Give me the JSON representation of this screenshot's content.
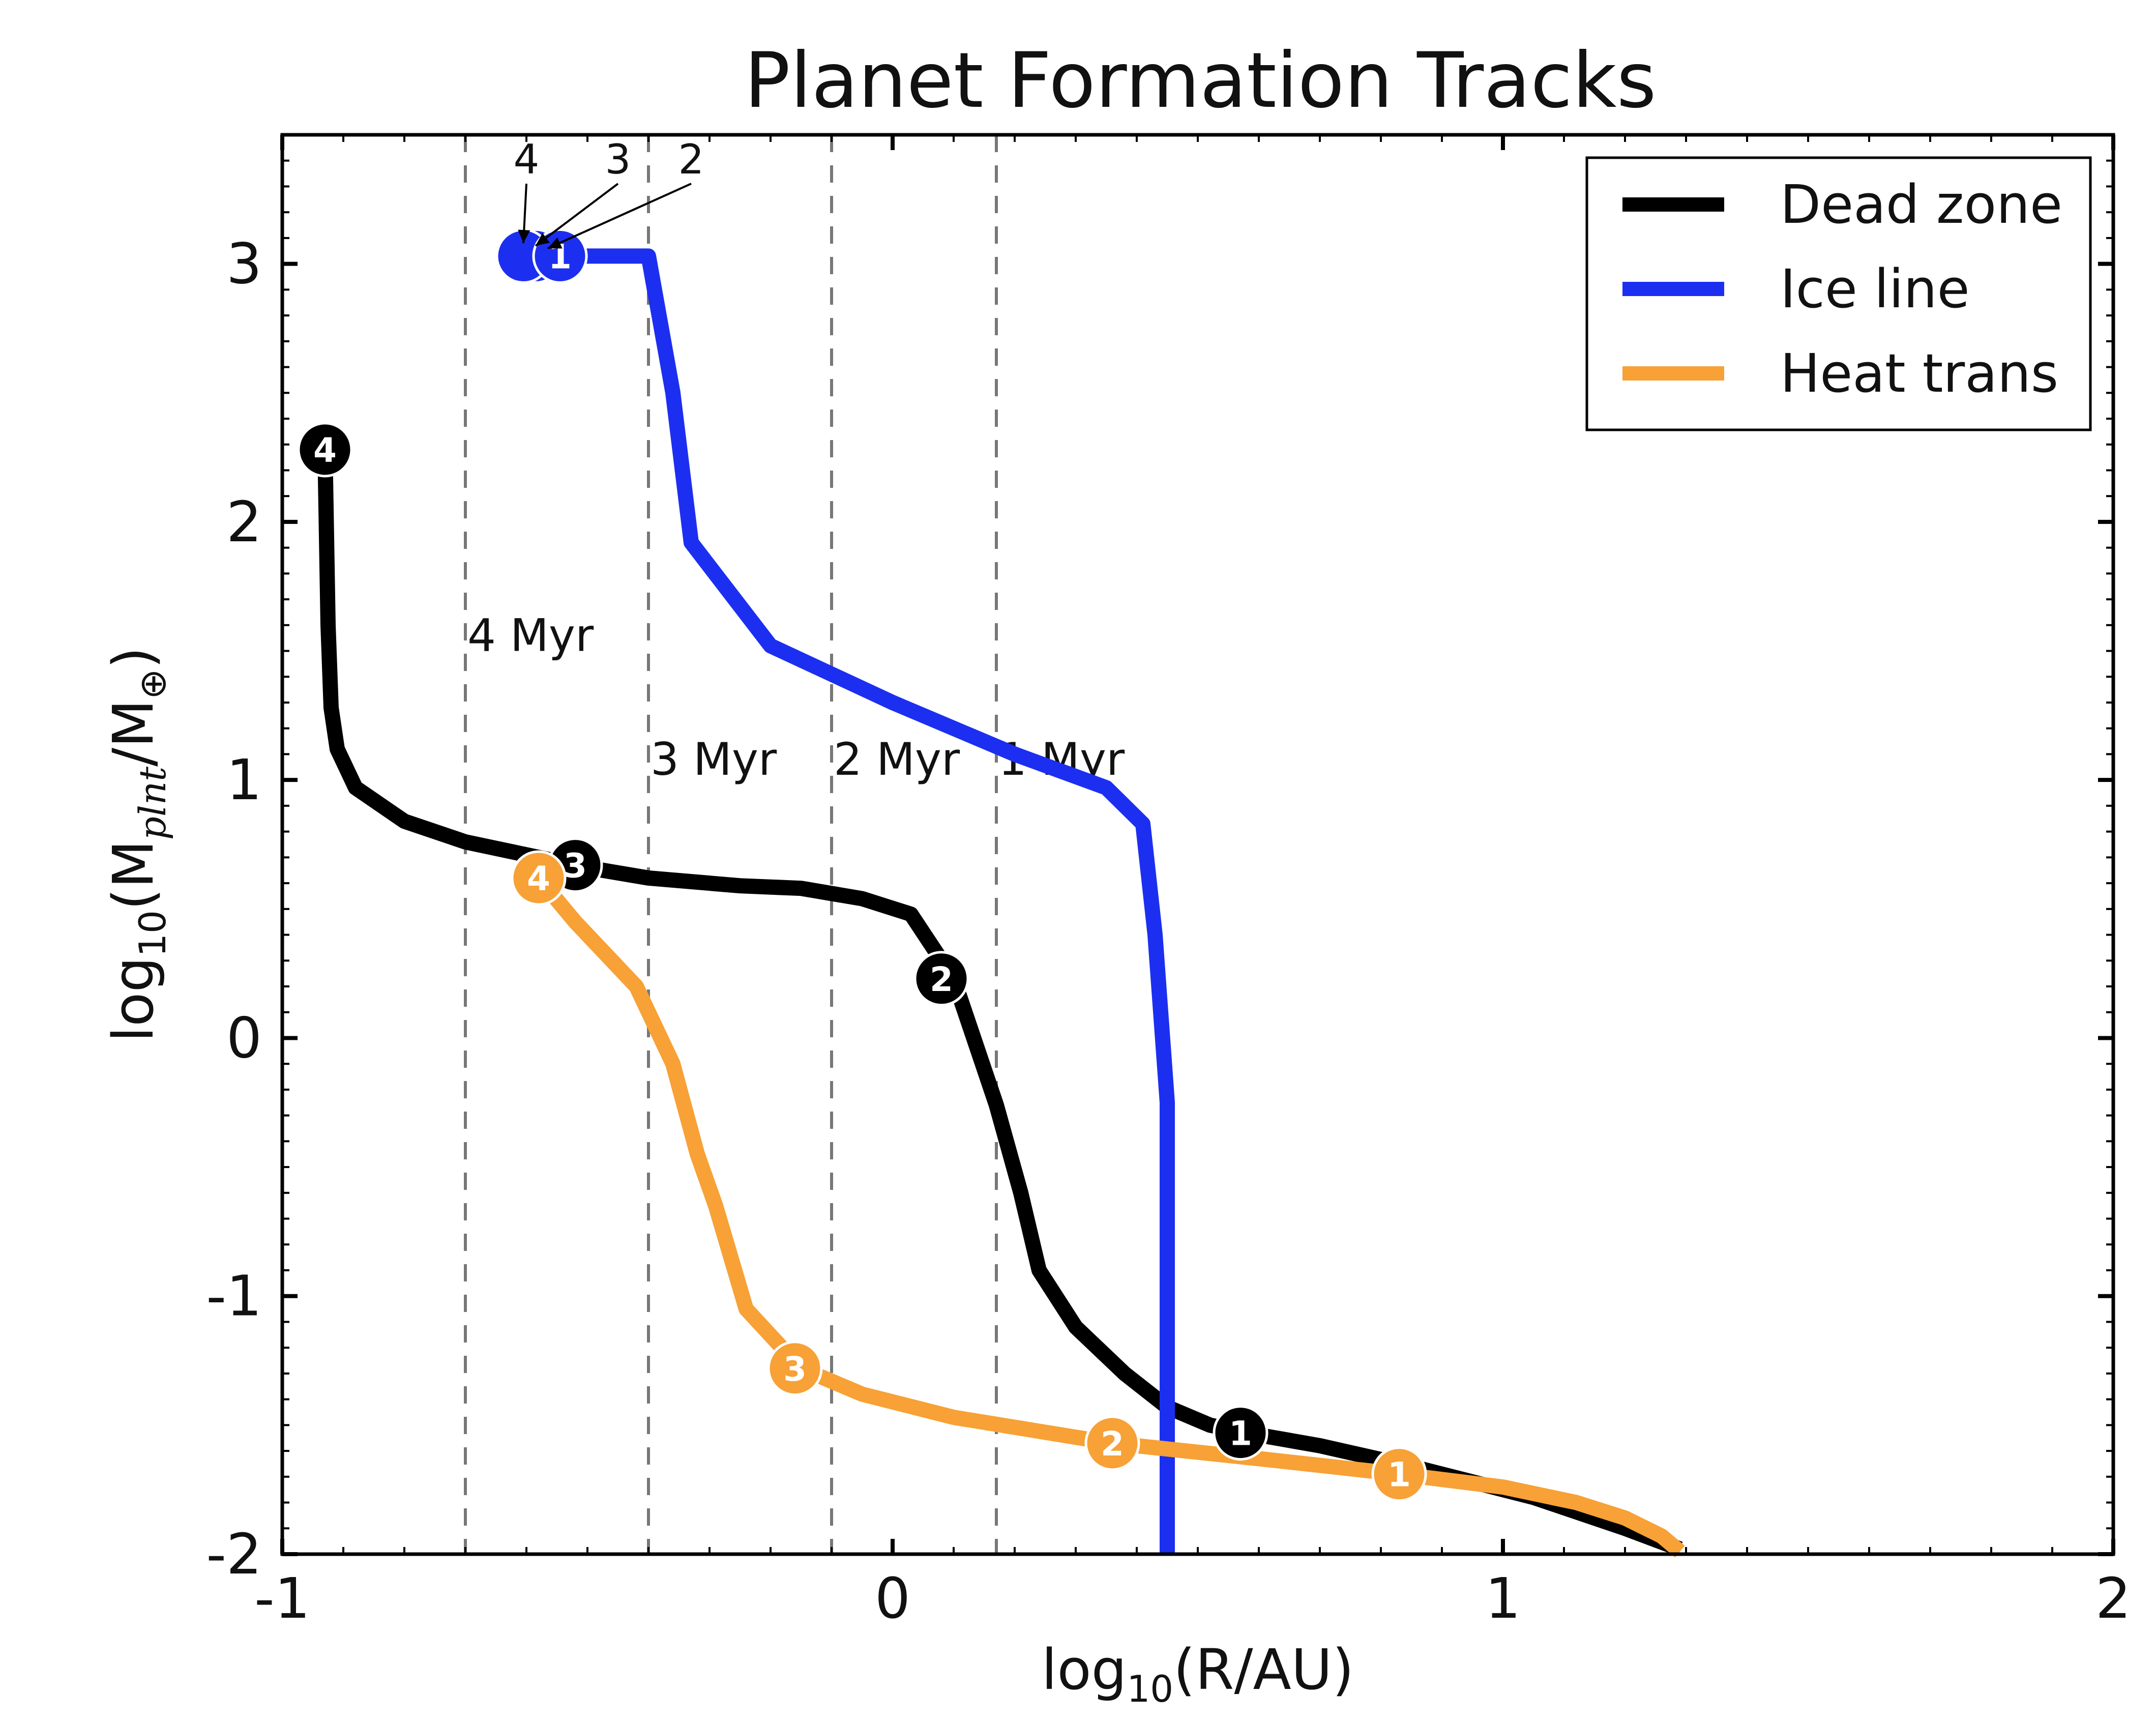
{
  "chart_data": {
    "type": "line",
    "title": "Planet Formation Tracks",
    "xlabel": "log10(R/AU)",
    "ylabel": "log10(Mplnt/M⊕)",
    "xlabel_parts": {
      "pre": "log",
      "sub": "10",
      "post": "(R/AU)"
    },
    "ylabel_parts": {
      "pre": "log",
      "sub1": "10",
      "mid": "(M",
      "sub2": "plnt",
      "post": "/M",
      "sub3": "⊕",
      "close": ")"
    },
    "xlim": [
      -1,
      2
    ],
    "ylim": [
      -2,
      3.5
    ],
    "xticks": [
      -1,
      0,
      1,
      2
    ],
    "xtick_labels": [
      "-1",
      "0",
      "1",
      "2"
    ],
    "yticks": [
      -2,
      -1,
      0,
      1,
      2,
      3
    ],
    "ytick_labels": [
      "-2",
      "-1",
      "0",
      "1",
      "2",
      "3"
    ],
    "grid": false,
    "legend_position": "top-right",
    "vlines": [
      {
        "x": -0.7,
        "label": "4 Myr",
        "label_y": 1.5
      },
      {
        "x": -0.4,
        "label": "3 Myr",
        "label_y": 1.02
      },
      {
        "x": -0.1,
        "label": "2 Myr",
        "label_y": 1.02
      },
      {
        "x": 0.17,
        "label": "1 Myr",
        "label_y": 1.02
      }
    ],
    "series": [
      {
        "name": "Dead zone",
        "color": "#000000",
        "x": [
          -0.93,
          -0.925,
          -0.92,
          -0.91,
          -0.88,
          -0.8,
          -0.7,
          -0.6,
          -0.5,
          -0.4,
          -0.25,
          -0.15,
          -0.05,
          0.03,
          0.1,
          0.17,
          0.21,
          0.24,
          0.3,
          0.38,
          0.45,
          0.52,
          0.58,
          0.7,
          0.85,
          1.05,
          1.2,
          1.29
        ],
        "y": [
          2.28,
          1.6,
          1.28,
          1.12,
          0.97,
          0.84,
          0.76,
          0.71,
          0.66,
          0.62,
          0.59,
          0.58,
          0.54,
          0.48,
          0.23,
          -0.26,
          -0.6,
          -0.9,
          -1.12,
          -1.3,
          -1.43,
          -1.5,
          -1.53,
          -1.58,
          -1.66,
          -1.78,
          -1.9,
          -1.98
        ]
      },
      {
        "name": "Ice line",
        "color": "#1c2ff0",
        "x": [
          -0.6,
          -0.55,
          -0.4,
          -0.36,
          -0.33,
          -0.2,
          0.0,
          0.2,
          0.35,
          0.41,
          0.43,
          0.45,
          0.45,
          0.45
        ],
        "y": [
          3.03,
          3.03,
          3.03,
          2.5,
          1.92,
          1.52,
          1.3,
          1.1,
          0.97,
          0.83,
          0.4,
          -0.25,
          -1.0,
          -2.0
        ]
      },
      {
        "name": "Heat trans",
        "color": "#f7a136",
        "x": [
          -0.58,
          -0.52,
          -0.42,
          -0.36,
          -0.32,
          -0.29,
          -0.24,
          -0.15,
          -0.05,
          0.1,
          0.36,
          0.6,
          0.83,
          1.0,
          1.12,
          1.2,
          1.26,
          1.29
        ],
        "y": [
          0.62,
          0.45,
          0.2,
          -0.1,
          -0.45,
          -0.65,
          -1.05,
          -1.28,
          -1.38,
          -1.47,
          -1.57,
          -1.63,
          -1.69,
          -1.74,
          -1.8,
          -1.86,
          -1.93,
          -1.99
        ]
      }
    ],
    "markers": [
      {
        "series": "Ice line",
        "label": "1",
        "x": -0.545,
        "y": 3.03
      },
      {
        "series": "Ice line",
        "label": "",
        "x": -0.565,
        "y": 3.03
      },
      {
        "series": "Ice line",
        "label": "",
        "x": -0.585,
        "y": 3.03
      },
      {
        "series": "Ice line",
        "label": "",
        "x": -0.605,
        "y": 3.03
      },
      {
        "series": "Dead zone",
        "label": "4",
        "x": -0.93,
        "y": 2.28
      },
      {
        "series": "Dead zone",
        "label": "3",
        "x": -0.52,
        "y": 0.67
      },
      {
        "series": "Dead zone",
        "label": "2",
        "x": 0.08,
        "y": 0.23
      },
      {
        "series": "Dead zone",
        "label": "1",
        "x": 0.57,
        "y": -1.53
      },
      {
        "series": "Heat trans",
        "label": "4",
        "x": -0.58,
        "y": 0.62
      },
      {
        "series": "Heat trans",
        "label": "3",
        "x": -0.16,
        "y": -1.28
      },
      {
        "series": "Heat trans",
        "label": "2",
        "x": 0.36,
        "y": -1.57
      },
      {
        "series": "Heat trans",
        "label": "1",
        "x": 0.83,
        "y": -1.69
      }
    ],
    "annotations": [
      {
        "text": "4",
        "text_x": -0.6,
        "text_y": 3.35,
        "target_x": -0.605,
        "target_y": 3.08
      },
      {
        "text": "3",
        "text_x": -0.45,
        "text_y": 3.35,
        "target_x": -0.585,
        "target_y": 3.07
      },
      {
        "text": "2",
        "text_x": -0.33,
        "text_y": 3.35,
        "target_x": -0.565,
        "target_y": 3.06
      }
    ]
  }
}
